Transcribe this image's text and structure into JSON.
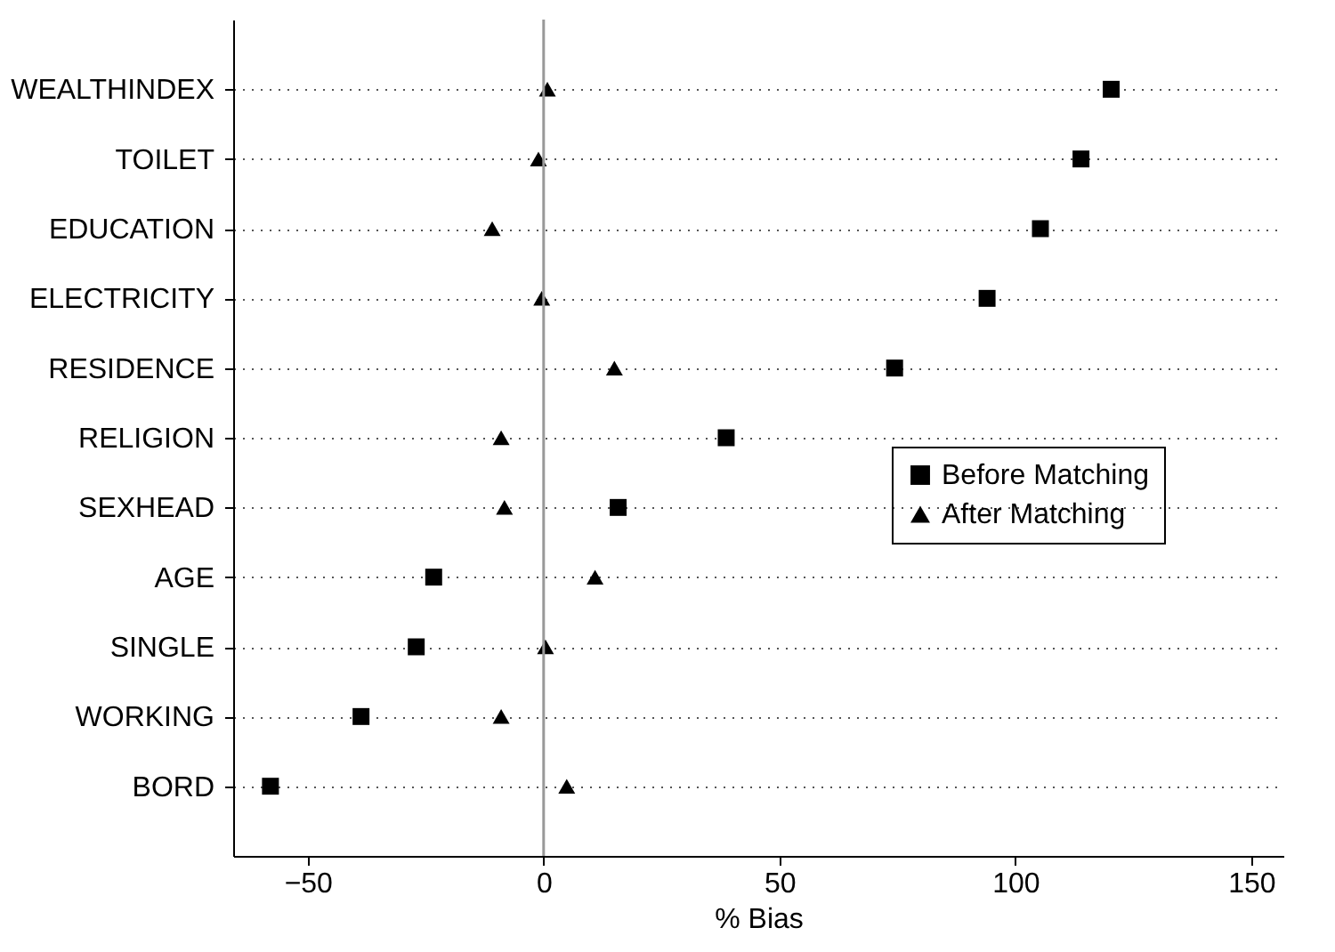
{
  "chart_data": {
    "type": "scatter",
    "xlabel": "% Bias",
    "categories": [
      "WEALTHINDEX",
      "TOILET",
      "EDUCATION",
      "ELECTRICITY",
      "RESIDENCE",
      "RELIGION",
      "SEXHEAD",
      "AGE",
      "SINGLE",
      "WORKING",
      "BORD"
    ],
    "series": [
      {
        "name": "Before Matching",
        "color": "#000000",
        "marker": "square",
        "values": [
          120.3,
          113.9,
          105.3,
          94,
          74.4,
          38.7,
          15.8,
          -23.3,
          -27,
          -38.7,
          -57.9
        ]
      },
      {
        "name": "After Matching",
        "color": "#000000",
        "marker": "triangle",
        "values": [
          0.8,
          -1.1,
          -10.9,
          -0.4,
          15,
          -9,
          -8.3,
          10.9,
          0.4,
          -9,
          4.9
        ]
      }
    ],
    "orientation": "horizontal",
    "xlim": [
      -65.8,
      156.8
    ],
    "xticks": [
      -50,
      0,
      50,
      100,
      150
    ],
    "ref_lines": [
      {
        "axis": "x",
        "value": 0,
        "color": "#999999"
      }
    ],
    "grid": "y",
    "line_style": "dotted",
    "legend": "right"
  }
}
